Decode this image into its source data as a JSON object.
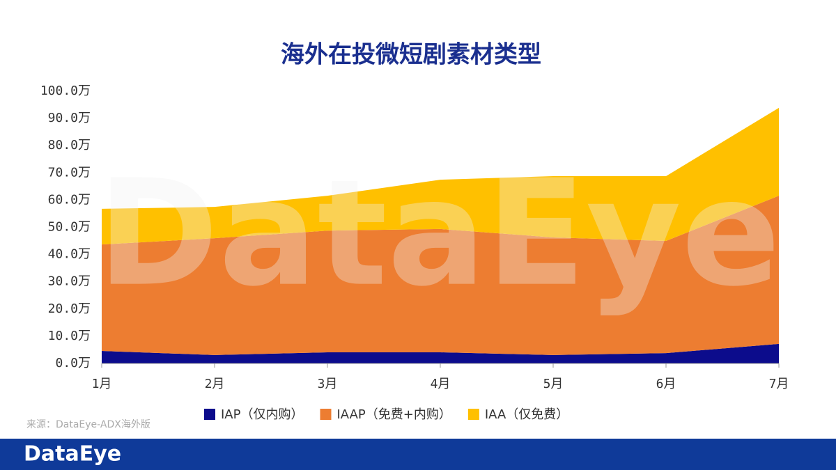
{
  "chart_data": {
    "type": "stacked_area",
    "title": "海外在投微短剧素材类型",
    "categories": [
      "1月",
      "2月",
      "3月",
      "4月",
      "5月",
      "6月",
      "7月"
    ],
    "series": [
      {
        "name": "IAP（仅内购）",
        "color": "#0c0c8c",
        "values": [
          4.6,
          3.1,
          4.1,
          4.1,
          3.1,
          3.8,
          7.2
        ]
      },
      {
        "name": "IAAP（免费+内购）",
        "color": "#ed7d31",
        "values": [
          39.1,
          42.9,
          44.7,
          45.3,
          43.2,
          41.2,
          54.4
        ]
      },
      {
        "name": "IAA（仅免费）",
        "color": "#ffc000",
        "values": [
          13.1,
          11.5,
          12.8,
          18.1,
          22.5,
          23.8,
          32.3
        ]
      }
    ],
    "ylim": [
      0,
      100
    ],
    "yticks": [
      {
        "value": 0,
        "label": "0.0万"
      },
      {
        "value": 10,
        "label": "10.0万"
      },
      {
        "value": 20,
        "label": "20.0万"
      },
      {
        "value": 30,
        "label": "30.0万"
      },
      {
        "value": 40,
        "label": "40.0万"
      },
      {
        "value": 50,
        "label": "50.0万"
      },
      {
        "value": 60,
        "label": "60.0万"
      },
      {
        "value": 70,
        "label": "70.0万"
      },
      {
        "value": 80,
        "label": "80.0万"
      },
      {
        "value": 90,
        "label": "90.0万"
      },
      {
        "value": 100,
        "label": "100.0万"
      }
    ],
    "legend": "bottom",
    "source": "来源：DataEye-ADX海外版",
    "watermark": "DataEye",
    "footer_logo": "DataEye"
  }
}
